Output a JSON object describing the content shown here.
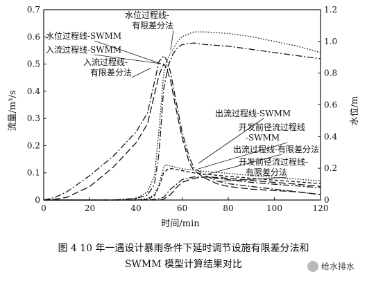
{
  "chart_data": {
    "type": "line",
    "xlabel": "时间/min",
    "ylabel_left": "流量/m³/s",
    "ylabel_right": "水位/m",
    "xlim": [
      0,
      120
    ],
    "ylim_left": [
      0,
      0.7
    ],
    "ylim_right": [
      0,
      1.2
    ],
    "x_ticks": [
      0,
      20,
      40,
      60,
      80,
      100,
      120
    ],
    "y_left_ticks": [
      0,
      0.1,
      0.2,
      0.3,
      0.4,
      0.5,
      0.6,
      0.7
    ],
    "y_right_ticks": [
      0,
      0.2,
      0.4,
      0.6,
      0.8,
      1.0,
      1.2
    ],
    "y_left_tick_labels": [
      "0",
      "0.1",
      "0.2",
      "0.3",
      "0.4",
      "0.5",
      "0.6",
      "0.7"
    ],
    "y_right_tick_labels": [
      "0",
      "0.2",
      "0.4",
      "0.6",
      "0.8",
      "1.0",
      "1.2"
    ],
    "grid": false,
    "series": [
      {
        "name": "水位过程线-有限差分法",
        "axis": "right",
        "style": "dotted",
        "x": [
          0,
          10,
          20,
          30,
          40,
          45,
          48,
          50,
          52,
          54,
          56,
          58,
          60,
          65,
          70,
          80,
          90,
          100,
          110,
          120
        ],
        "y": [
          0,
          0,
          0,
          0,
          0.01,
          0.05,
          0.15,
          0.45,
          0.8,
          0.9,
          0.95,
          1.0,
          1.03,
          1.06,
          1.06,
          1.05,
          1.03,
          1.0,
          0.97,
          0.93
        ]
      },
      {
        "name": "水位过程线-SWMM",
        "axis": "right",
        "style": "dash-dot",
        "x": [
          0,
          10,
          20,
          30,
          40,
          45,
          48,
          50,
          52,
          54,
          56,
          58,
          60,
          65,
          70,
          80,
          90,
          100,
          110,
          120
        ],
        "y": [
          0,
          0,
          0,
          0,
          0.01,
          0.03,
          0.1,
          0.3,
          0.7,
          0.85,
          0.92,
          0.96,
          0.98,
          0.99,
          0.98,
          0.97,
          0.95,
          0.93,
          0.91,
          0.89
        ]
      },
      {
        "name": "入流过程线-SWMM",
        "axis": "left",
        "style": "dash-dot",
        "x": [
          0,
          5,
          10,
          20,
          30,
          40,
          45,
          50,
          52,
          53,
          55,
          57,
          60,
          63,
          65,
          70,
          75,
          80,
          90,
          100,
          110,
          120
        ],
        "y": [
          0,
          0.01,
          0.03,
          0.09,
          0.16,
          0.25,
          0.32,
          0.51,
          0.53,
          0.52,
          0.47,
          0.38,
          0.25,
          0.16,
          0.12,
          0.09,
          0.07,
          0.06,
          0.05,
          0.04,
          0.03,
          0.02
        ]
      },
      {
        "name": "入流过程线-有限差分法",
        "axis": "left",
        "style": "long-dash",
        "x": [
          0,
          5,
          10,
          20,
          30,
          40,
          45,
          50,
          52,
          53,
          55,
          57,
          60,
          63,
          65,
          70,
          75,
          80,
          90,
          100,
          110,
          120
        ],
        "y": [
          0,
          0.003,
          0.01,
          0.05,
          0.12,
          0.21,
          0.28,
          0.46,
          0.5,
          0.49,
          0.44,
          0.35,
          0.23,
          0.14,
          0.11,
          0.08,
          0.06,
          0.05,
          0.04,
          0.035,
          0.03,
          0.02
        ]
      },
      {
        "name": "出流过程线-SWMM",
        "axis": "left",
        "style": "dotted",
        "x": [
          0,
          40,
          45,
          48,
          50,
          52,
          53,
          55,
          60,
          65,
          70,
          80,
          90,
          100,
          110,
          120
        ],
        "y": [
          0,
          0,
          0.005,
          0.02,
          0.06,
          0.12,
          0.13,
          0.125,
          0.115,
          0.11,
          0.105,
          0.098,
          0.09,
          0.083,
          0.077,
          0.07
        ]
      },
      {
        "name": "出流过程线-有限差分法",
        "axis": "left",
        "style": "dashed",
        "x": [
          0,
          40,
          45,
          48,
          50,
          52,
          54,
          56,
          60,
          65,
          70,
          80,
          90,
          100,
          110,
          120
        ],
        "y": [
          0,
          0,
          0.003,
          0.015,
          0.05,
          0.1,
          0.115,
          0.115,
          0.108,
          0.1,
          0.095,
          0.087,
          0.08,
          0.073,
          0.067,
          0.06
        ]
      },
      {
        "name": "开发前径流过程线-SWMM",
        "axis": "left",
        "style": "dash-dot",
        "x": [
          0,
          45,
          50,
          52,
          55,
          60,
          65,
          70,
          75,
          80,
          90,
          100,
          110,
          120
        ],
        "y": [
          0,
          0,
          0.005,
          0.01,
          0.04,
          0.075,
          0.085,
          0.085,
          0.08,
          0.075,
          0.065,
          0.058,
          0.052,
          0.045
        ]
      },
      {
        "name": "开发前径流过程线-有限差分法",
        "axis": "left",
        "style": "long-dash",
        "x": [
          0,
          50,
          52,
          55,
          58,
          60,
          65,
          70,
          75,
          80,
          90,
          100,
          110,
          120
        ],
        "y": [
          0,
          0,
          0.003,
          0.02,
          0.05,
          0.065,
          0.08,
          0.085,
          0.083,
          0.08,
          0.072,
          0.065,
          0.058,
          0.05
        ]
      }
    ],
    "annotations": [
      {
        "lines": [
          "水位过程线-",
          "有限差分法"
        ],
        "target_series": 0,
        "target": [
          54,
          0.92
        ]
      },
      {
        "lines": [
          "水位过程线-SWMM"
        ],
        "target_series": 1,
        "target": [
          55,
          0.88
        ]
      },
      {
        "lines": [
          "入流过程线-SWMM"
        ],
        "target_series": 2,
        "target": [
          52,
          0.53
        ]
      },
      {
        "lines": [
          "入流过程线-",
          "有限差分法"
        ],
        "target_series": 3,
        "target": [
          53,
          0.49
        ]
      },
      {
        "lines": [
          "出流过程线-SWMM"
        ],
        "target_series": 4,
        "target": [
          62,
          0.113
        ]
      },
      {
        "lines": [
          "开发前径流过程线",
          "-SWMM"
        ],
        "target_series": 6,
        "target": [
          66,
          0.086
        ]
      },
      {
        "lines": [
          "出流过程线-有限差分法"
        ],
        "target_series": 5,
        "target": [
          70,
          0.095
        ]
      },
      {
        "lines": [
          "开发前径流过程线-",
          "有限差分法"
        ],
        "target_series": 7,
        "target": [
          76,
          0.082
        ]
      }
    ]
  },
  "caption": {
    "line1": "图 4   10 年一遇设计暴雨条件下延时调节设施有限差分法和",
    "line2": "SWMM 模型计算结果对比"
  },
  "watermark": {
    "text": "给水排水",
    "icon": "wechat-icon"
  }
}
